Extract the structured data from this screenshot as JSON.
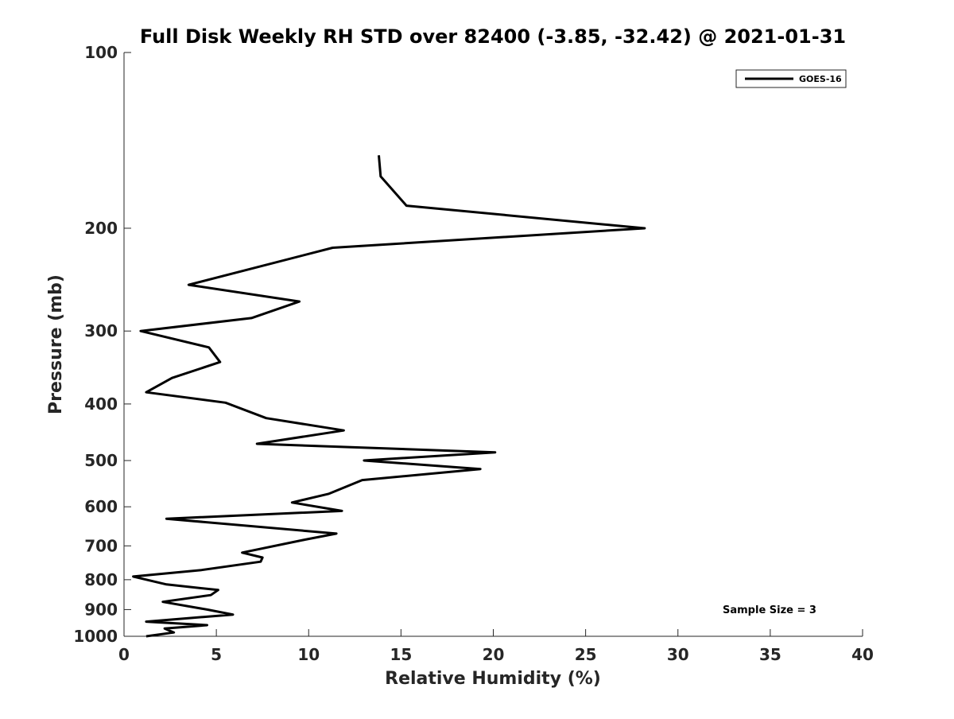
{
  "chart_data": {
    "type": "line",
    "title": "Full Disk Weekly RH STD over 82400 (-3.85, -32.42) @ 2021-01-31",
    "xlabel": "Relative Humidity (%)",
    "ylabel": "Pressure (mb)",
    "xlim": [
      0,
      40
    ],
    "ylim": [
      100,
      1000
    ],
    "y_scale": "log",
    "y_reversed": true,
    "grid": false,
    "x_ticks": [
      "0",
      "5",
      "10",
      "15",
      "20",
      "25",
      "30",
      "35",
      "40"
    ],
    "y_ticks": [
      "100",
      "200",
      "300",
      "400",
      "500",
      "600",
      "700",
      "800",
      "900",
      "1000"
    ],
    "legend": {
      "entries": [
        "GOES-16"
      ],
      "placement": "top-right"
    },
    "annotation": "Sample Size = 3",
    "series": [
      {
        "name": "GOES-16",
        "color": "#000000",
        "x": [
          13.8,
          13.9,
          15.3,
          28.2,
          11.3,
          3.5,
          9.5,
          6.9,
          0.9,
          4.6,
          5.2,
          2.6,
          1.2,
          5.5,
          7.7,
          11.9,
          7.2,
          20.1,
          13.0,
          19.3,
          12.9,
          11.1,
          9.1,
          11.8,
          2.3,
          11.5,
          9.8,
          6.4,
          7.5,
          7.4,
          4.2,
          0.5,
          2.3,
          5.1,
          4.7,
          2.1,
          4.5,
          5.9,
          1.2,
          4.5,
          2.2,
          2.7,
          1.2
        ],
        "y": [
          150,
          163,
          183,
          200,
          216,
          250,
          267,
          285,
          300,
          320,
          339,
          361,
          382,
          398,
          423,
          444,
          468,
          484,
          500,
          517,
          540,
          570,
          590,
          610,
          629,
          667,
          683,
          719,
          733,
          745,
          770,
          790,
          815,
          833,
          850,
          873,
          900,
          918,
          944,
          957,
          970,
          985,
          1000
        ]
      }
    ]
  }
}
